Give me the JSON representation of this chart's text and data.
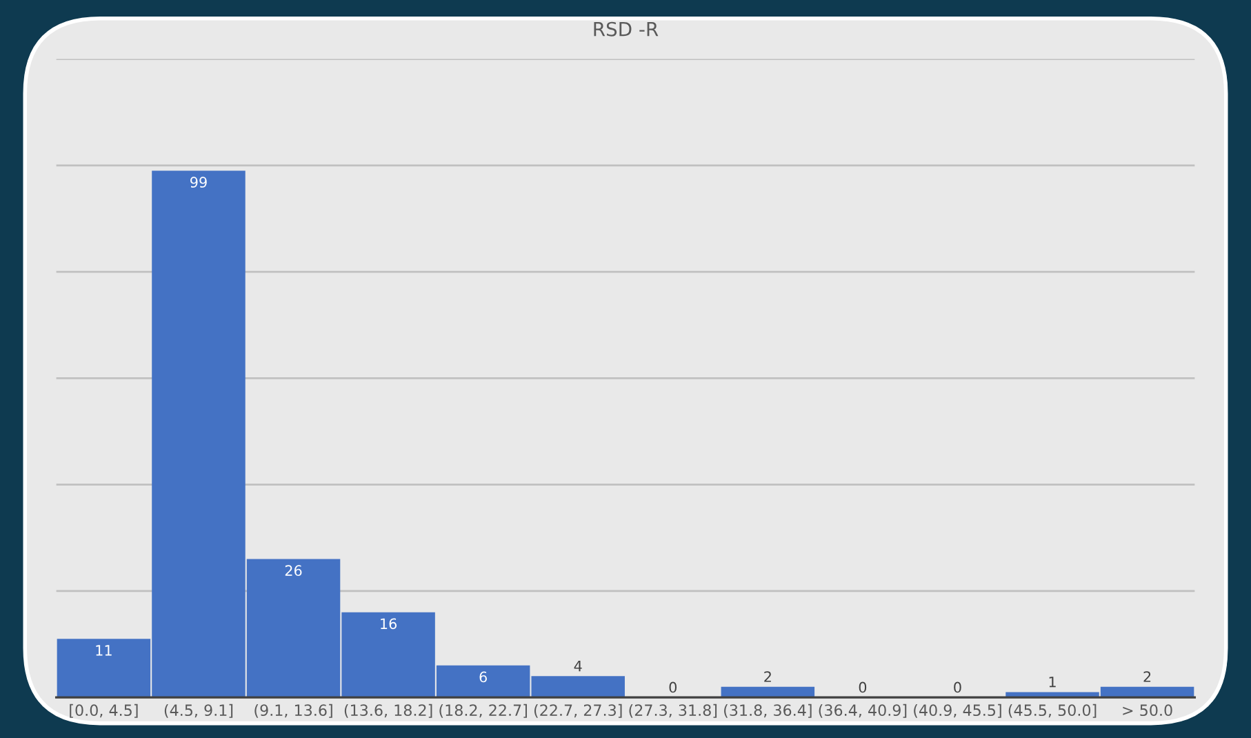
{
  "chart_data": {
    "type": "histogram",
    "title": "RSD -R",
    "categories": [
      "[0.0, 4.5]",
      "(4.5, 9.1]",
      "(9.1, 13.6]",
      "(13.6, 18.2]",
      "(18.2, 22.7]",
      "(22.7, 27.3]",
      "(27.3, 31.8]",
      "(31.8, 36.4]",
      "(36.4, 40.9]",
      "(40.9, 45.5]",
      "(45.5, 50.0]",
      "> 50.0"
    ],
    "values": [
      11,
      99,
      26,
      16,
      6,
      4,
      0,
      2,
      0,
      0,
      1,
      2
    ],
    "color": "#4472c4",
    "ylim": [
      0,
      120
    ],
    "yticks": [
      {
        "value": 0,
        "label": null
      },
      {
        "value": 20,
        "label": null
      },
      {
        "value": 40,
        "label": null
      },
      {
        "value": 60,
        "label": null
      },
      {
        "value": 80,
        "label": null
      },
      {
        "value": 100,
        "label": null
      },
      {
        "value": 120,
        "label": null
      }
    ],
    "grid": "y",
    "data_labels": true,
    "tick_labels": "x"
  }
}
